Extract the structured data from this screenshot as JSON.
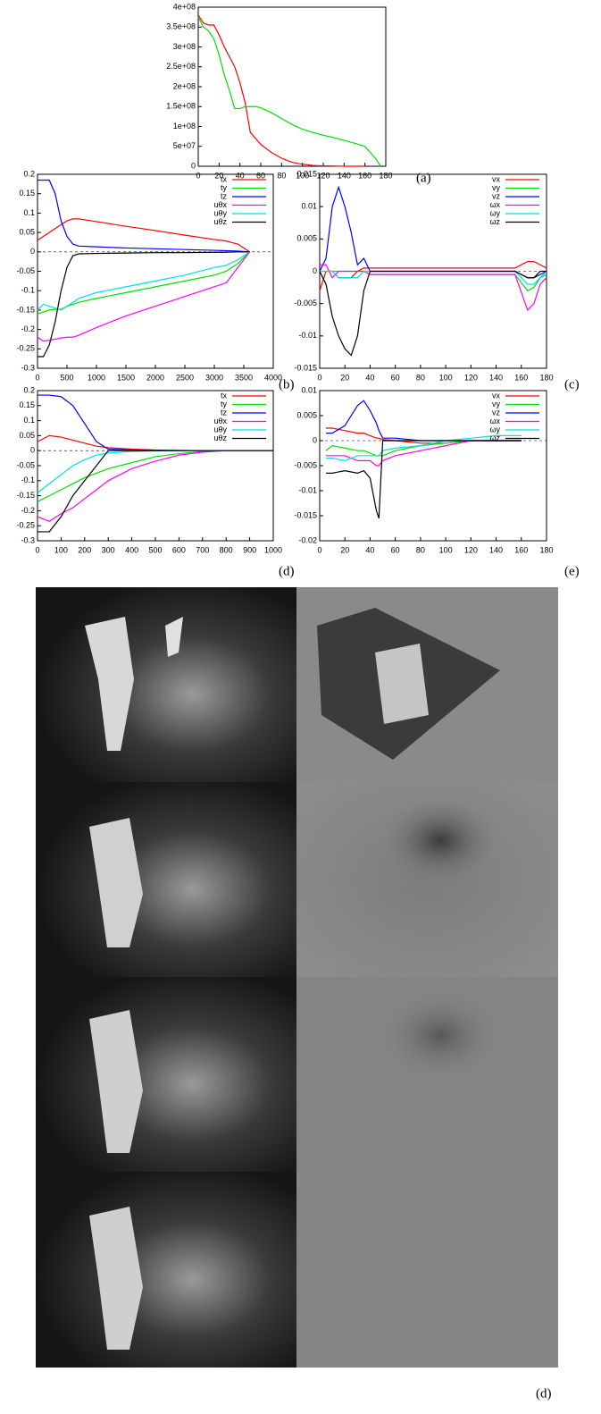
{
  "chart_data": [
    {
      "type": "line",
      "label": "(a)",
      "x": [
        0,
        5,
        10,
        15,
        20,
        25,
        30,
        35,
        40,
        45,
        50,
        55,
        60,
        70,
        80,
        90,
        100,
        110,
        120,
        130,
        140,
        150,
        160,
        170,
        175
      ],
      "xlim": [
        0,
        180
      ],
      "xticks": [
        0,
        20,
        40,
        60,
        80,
        100,
        120,
        140,
        160,
        180
      ],
      "ylim": [
        0,
        400000000
      ],
      "yticks": [
        {
          "value": 0,
          "label": "0"
        },
        {
          "value": 50000000,
          "label": "5e+07"
        },
        {
          "value": 100000000,
          "label": "1e+08"
        },
        {
          "value": 150000000,
          "label": "1.5e+08"
        },
        {
          "value": 200000000,
          "label": "2e+08"
        },
        {
          "value": 250000000,
          "label": "2.5e+08"
        },
        {
          "value": 300000000,
          "label": "3e+08"
        },
        {
          "value": 350000000,
          "label": "3.5e+08"
        },
        {
          "value": 400000000,
          "label": "4e+08"
        }
      ],
      "series": [
        {
          "color": "#ff0000",
          "values": [
            380000000,
            360000000,
            355000000,
            355000000,
            330000000,
            300000000,
            275000000,
            250000000,
            210000000,
            160000000,
            85000000,
            70000000,
            55000000,
            35000000,
            20000000,
            10000000,
            5000000,
            2000000,
            1000000,
            500000,
            0,
            0,
            0,
            null,
            null
          ]
        },
        {
          "color": "#00e000",
          "values": [
            375000000,
            350000000,
            340000000,
            320000000,
            280000000,
            230000000,
            190000000,
            145000000,
            145000000,
            150000000,
            150000000,
            150000000,
            147000000,
            135000000,
            120000000,
            105000000,
            93000000,
            85000000,
            78000000,
            72000000,
            65000000,
            58000000,
            50000000,
            20000000,
            0
          ]
        }
      ]
    },
    {
      "type": "line",
      "label": "(b)",
      "legend": "top right",
      "zero_line": true,
      "x": [
        0,
        100,
        200,
        300,
        400,
        500,
        600,
        700,
        1000,
        1500,
        2000,
        2500,
        3000,
        3200,
        3400,
        3600
      ],
      "xlim": [
        0,
        4000
      ],
      "xticks": [
        0,
        500,
        1000,
        1500,
        2000,
        2500,
        3000,
        3500,
        4000
      ],
      "ylim": [
        -0.3,
        0.2
      ],
      "yticks": [
        -0.3,
        -0.25,
        -0.2,
        -0.15,
        -0.1,
        -0.05,
        0,
        0.05,
        0.1,
        0.15,
        0.2
      ],
      "series": [
        {
          "name": "tx",
          "color": "#ff0000",
          "values": [
            0.03,
            0.04,
            0.05,
            0.06,
            0.07,
            0.08,
            0.085,
            0.085,
            0.078,
            0.066,
            0.055,
            0.043,
            0.032,
            0.028,
            0.02,
            0
          ]
        },
        {
          "name": "ty",
          "color": "#00e000",
          "values": [
            -0.16,
            -0.155,
            -0.15,
            -0.148,
            -0.148,
            -0.14,
            -0.135,
            -0.13,
            -0.12,
            -0.105,
            -0.09,
            -0.075,
            -0.06,
            -0.05,
            -0.03,
            0
          ]
        },
        {
          "name": "tz",
          "color": "#0000ff",
          "values": [
            0.185,
            0.185,
            0.185,
            0.15,
            0.08,
            0.04,
            0.02,
            0.015,
            0.013,
            0.01,
            0.008,
            0.006,
            0.004,
            0.003,
            0.002,
            0
          ]
        },
        {
          "name": "uθx",
          "color": "#ff00ff",
          "values": [
            -0.22,
            -0.23,
            -0.228,
            -0.225,
            -0.222,
            -0.22,
            -0.22,
            -0.215,
            -0.195,
            -0.165,
            -0.14,
            -0.115,
            -0.09,
            -0.08,
            -0.04,
            0
          ]
        },
        {
          "name": "uθy",
          "color": "#00e0e0",
          "values": [
            -0.15,
            -0.135,
            -0.14,
            -0.145,
            -0.15,
            -0.14,
            -0.13,
            -0.12,
            -0.105,
            -0.09,
            -0.075,
            -0.06,
            -0.04,
            -0.035,
            -0.02,
            0
          ]
        },
        {
          "name": "uθz",
          "color": "#000000",
          "values": [
            -0.27,
            -0.27,
            -0.24,
            -0.18,
            -0.1,
            -0.04,
            -0.01,
            -0.005,
            -0.004,
            -0.003,
            -0.002,
            -0.002,
            -0.001,
            -0.001,
            0,
            0
          ]
        }
      ]
    },
    {
      "type": "line",
      "label": "(c)",
      "legend": "top right",
      "zero_line": true,
      "x": [
        0,
        5,
        10,
        15,
        20,
        25,
        30,
        35,
        40,
        60,
        80,
        100,
        120,
        140,
        155,
        165,
        170,
        175,
        180
      ],
      "xlim": [
        0,
        180
      ],
      "xticks": [
        0,
        20,
        40,
        60,
        80,
        100,
        120,
        140,
        160,
        180
      ],
      "ylim": [
        -0.015,
        0.015
      ],
      "yticks": [
        -0.015,
        -0.01,
        -0.005,
        0,
        0.005,
        0.01,
        0.015
      ],
      "series": [
        {
          "name": "vx",
          "color": "#ff0000",
          "values": [
            -0.003,
            0,
            0,
            -0.001,
            -0.001,
            -0.001,
            0,
            0.0005,
            0.0005,
            0.0005,
            0.0005,
            0.0005,
            0.0005,
            0.0005,
            0.0005,
            0.0015,
            0.0015,
            0.001,
            0.0005
          ]
        },
        {
          "name": "vy",
          "color": "#00e000",
          "values": [
            0,
            0,
            0,
            0,
            0,
            0,
            0,
            0,
            -0.0005,
            -0.0005,
            -0.0005,
            -0.0005,
            -0.0005,
            -0.0005,
            -0.0005,
            -0.003,
            -0.0025,
            -0.001,
            -0.0005
          ]
        },
        {
          "name": "vz",
          "color": "#0000ff",
          "values": [
            0,
            0.002,
            0.01,
            0.013,
            0.01,
            0.006,
            0.001,
            0.002,
            0,
            0,
            0,
            0,
            0,
            0,
            0,
            -0.001,
            -0.001,
            -0.0005,
            0
          ]
        },
        {
          "name": "ωx",
          "color": "#ff00ff",
          "values": [
            0.001,
            0.001,
            -0.001,
            0,
            0,
            0,
            0,
            0,
            -0.0005,
            -0.0005,
            -0.0005,
            -0.0005,
            -0.0005,
            -0.0005,
            -0.0005,
            -0.006,
            -0.005,
            -0.002,
            -0.001
          ]
        },
        {
          "name": "ωy",
          "color": "#00e0e0",
          "values": [
            0,
            0,
            0,
            -0.001,
            -0.001,
            -0.001,
            -0.001,
            0,
            0,
            0,
            0,
            0,
            0,
            0,
            0,
            -0.002,
            -0.002,
            -0.001,
            0
          ]
        },
        {
          "name": "ωz",
          "color": "#000000",
          "values": [
            0,
            -0.002,
            -0.007,
            -0.01,
            -0.012,
            -0.013,
            -0.01,
            -0.003,
            0,
            0,
            0,
            0,
            0,
            0,
            0,
            -0.001,
            -0.001,
            0,
            0
          ]
        }
      ]
    },
    {
      "type": "line",
      "label": "(d)",
      "legend": "top right",
      "zero_line": true,
      "x": [
        0,
        50,
        100,
        150,
        200,
        250,
        300,
        400,
        500,
        600,
        700,
        800,
        900,
        1000
      ],
      "xlim": [
        0,
        1000
      ],
      "xticks": [
        0,
        100,
        200,
        300,
        400,
        500,
        600,
        700,
        800,
        900,
        1000
      ],
      "ylim": [
        -0.3,
        0.2
      ],
      "yticks": [
        -0.3,
        -0.25,
        -0.2,
        -0.15,
        -0.1,
        -0.05,
        0,
        0.05,
        0.1,
        0.15,
        0.2
      ],
      "series": [
        {
          "name": "tx",
          "color": "#ff0000",
          "values": [
            0.03,
            0.05,
            0.045,
            0.035,
            0.025,
            0.015,
            0.01,
            0.005,
            0.002,
            0.001,
            0,
            0,
            0,
            0
          ]
        },
        {
          "name": "ty",
          "color": "#00e000",
          "values": [
            -0.17,
            -0.15,
            -0.13,
            -0.11,
            -0.09,
            -0.075,
            -0.06,
            -0.04,
            -0.02,
            -0.01,
            -0.003,
            0,
            0,
            0
          ]
        },
        {
          "name": "tz",
          "color": "#0000ff",
          "values": [
            0.185,
            0.185,
            0.18,
            0.15,
            0.09,
            0.03,
            0.005,
            0.002,
            0.001,
            0,
            0,
            0,
            0,
            0
          ]
        },
        {
          "name": "uθx",
          "color": "#ff00ff",
          "values": [
            -0.22,
            -0.235,
            -0.21,
            -0.19,
            -0.16,
            -0.13,
            -0.1,
            -0.06,
            -0.035,
            -0.015,
            -0.005,
            0,
            0,
            0
          ]
        },
        {
          "name": "uθy",
          "color": "#00e0e0",
          "values": [
            -0.14,
            -0.11,
            -0.08,
            -0.05,
            -0.03,
            -0.015,
            -0.008,
            -0.003,
            -0.001,
            0,
            0,
            0,
            0,
            0
          ]
        },
        {
          "name": "uθz",
          "color": "#000000",
          "values": [
            -0.27,
            -0.27,
            -0.22,
            -0.15,
            -0.1,
            -0.05,
            0,
            0,
            0,
            0,
            0,
            0,
            0,
            0
          ]
        }
      ]
    },
    {
      "type": "line",
      "label": "(e)",
      "legend": "top right",
      "zero_line": true,
      "x": [
        0,
        5,
        10,
        20,
        30,
        35,
        40,
        45,
        47,
        50,
        60,
        80,
        100,
        120,
        140,
        160
      ],
      "xlim": [
        0,
        180
      ],
      "xticks": [
        0,
        20,
        40,
        60,
        80,
        100,
        120,
        140,
        160,
        180
      ],
      "ylim": [
        -0.02,
        0.01
      ],
      "yticks": [
        -0.02,
        -0.015,
        -0.01,
        -0.005,
        0,
        0.005,
        0.01
      ],
      "series": [
        {
          "name": "vx",
          "color": "#ff0000",
          "values": [
            null,
            0.0025,
            0.0025,
            0.002,
            0.0015,
            0.0015,
            0.001,
            0.0005,
            0.0005,
            0.0002,
            0,
            -0.0005,
            -0.0005,
            0,
            0,
            0
          ]
        },
        {
          "name": "vy",
          "color": "#00e000",
          "values": [
            null,
            -0.002,
            -0.001,
            -0.0015,
            -0.002,
            -0.002,
            -0.0025,
            -0.003,
            -0.003,
            -0.003,
            -0.002,
            -0.001,
            -0.0005,
            0,
            0,
            0
          ]
        },
        {
          "name": "vz",
          "color": "#0000ff",
          "values": [
            null,
            0.0015,
            0.0015,
            0.003,
            0.007,
            0.008,
            0.006,
            0.0035,
            0.002,
            0.0005,
            0.0005,
            0,
            0,
            0,
            0,
            0
          ]
        },
        {
          "name": "ωx",
          "color": "#ff00ff",
          "values": [
            null,
            -0.003,
            -0.003,
            -0.003,
            -0.004,
            -0.004,
            -0.004,
            -0.005,
            -0.005,
            -0.004,
            -0.003,
            -0.002,
            -0.001,
            0,
            0,
            0
          ]
        },
        {
          "name": "ωy",
          "color": "#00e0e0",
          "values": [
            null,
            -0.0035,
            -0.0035,
            -0.004,
            -0.003,
            -0.003,
            -0.003,
            -0.003,
            -0.003,
            -0.002,
            -0.0015,
            -0.001,
            0,
            0.0005,
            0.001,
            0.001
          ]
        },
        {
          "name": "ωz",
          "color": "#000000",
          "values": [
            null,
            -0.0065,
            -0.0065,
            -0.006,
            -0.0065,
            -0.006,
            -0.0075,
            -0.014,
            -0.0155,
            0,
            0,
            0,
            0,
            0,
            0,
            0
          ]
        }
      ]
    }
  ],
  "image_panel": {
    "label": "(d)"
  }
}
